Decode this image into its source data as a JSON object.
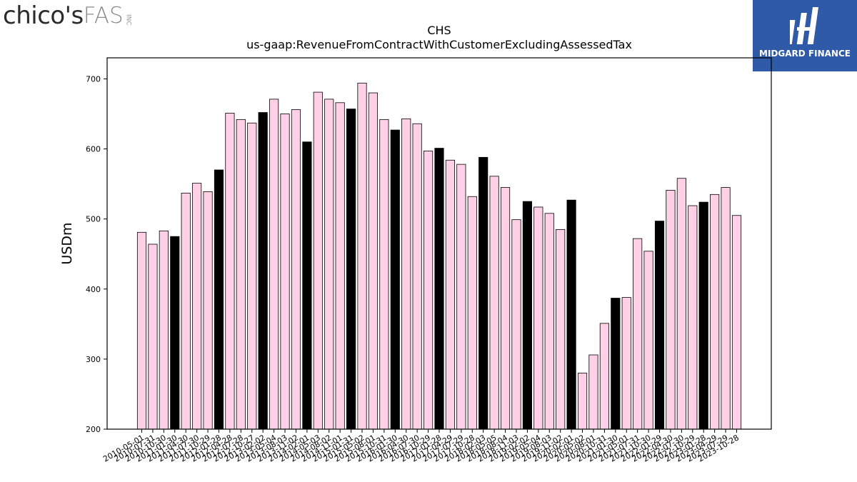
{
  "logos": {
    "left": {
      "brand": "chico's",
      "suffix": "FAS",
      "tag": "INC"
    },
    "right": {
      "name": "MIDGARD FINANCE",
      "bg_color": "#2f5aa8"
    }
  },
  "chart_data": {
    "type": "bar",
    "title": "CHS",
    "subtitle": "us-gaap:RevenueFromContractWithCustomerExcludingAssessedTax",
    "xlabel": "",
    "ylabel": "USDm",
    "ylim": [
      200,
      730
    ],
    "yticks": [
      200,
      300,
      400,
      500,
      600,
      700
    ],
    "grid": false,
    "colors": {
      "default": "#ffd0e6",
      "highlight": "#000000",
      "edge": "#000000"
    },
    "categories": [
      "2010-05-01",
      "2010-07-31",
      "2010-10-30",
      "2011-01-30",
      "2011-04-30",
      "2011-07-30",
      "2011-10-29",
      "2012-01-28",
      "2012-04-28",
      "2012-07-28",
      "2012-10-27",
      "2013-02-02",
      "2013-05-04",
      "2013-08-03",
      "2013-11-02",
      "2014-02-01",
      "2014-05-03",
      "2014-08-02",
      "2014-11-01",
      "2015-01-31",
      "2015-05-02",
      "2015-08-01",
      "2015-10-31",
      "2016-01-30",
      "2016-04-30",
      "2016-07-30",
      "2016-10-29",
      "2017-01-28",
      "2017-04-29",
      "2017-07-29",
      "2017-10-28",
      "2018-02-03",
      "2018-05-05",
      "2018-08-04",
      "2018-11-03",
      "2019-02-02",
      "2019-05-04",
      "2019-08-03",
      "2019-11-02",
      "2020-02-01",
      "2020-05-02",
      "2020-08-01",
      "2020-10-31",
      "2021-01-30",
      "2021-05-01",
      "2021-07-31",
      "2021-10-30",
      "2022-01-29",
      "2022-04-30",
      "2022-07-30",
      "2022-10-29",
      "2023-01-28",
      "2023-04-29",
      "2023-07-29",
      "2023-10-28"
    ],
    "values": [
      481,
      464,
      483,
      475,
      537,
      551,
      539,
      570,
      651,
      642,
      637,
      652,
      671,
      650,
      656,
      610,
      681,
      671,
      666,
      657,
      694,
      680,
      642,
      627,
      643,
      636,
      597,
      601,
      584,
      578,
      532,
      588,
      561,
      545,
      499,
      525,
      517,
      508,
      485,
      527,
      280,
      306,
      351,
      387,
      388,
      472,
      454,
      497,
      541,
      558,
      519,
      524,
      535,
      545,
      505
    ],
    "highlight": [
      false,
      false,
      false,
      true,
      false,
      false,
      false,
      true,
      false,
      false,
      false,
      true,
      false,
      false,
      false,
      true,
      false,
      false,
      false,
      true,
      false,
      false,
      false,
      true,
      false,
      false,
      false,
      true,
      false,
      false,
      false,
      true,
      false,
      false,
      false,
      true,
      false,
      false,
      false,
      true,
      false,
      false,
      false,
      true,
      false,
      false,
      false,
      true,
      false,
      false,
      false,
      true,
      false,
      false,
      false
    ]
  }
}
